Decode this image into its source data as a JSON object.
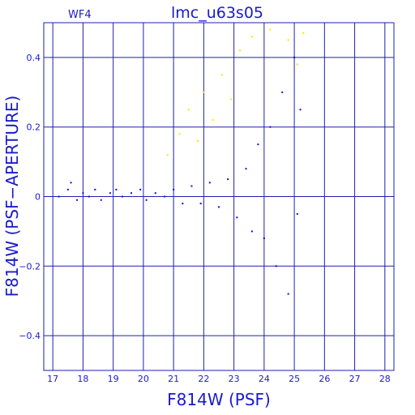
{
  "chart_data": {
    "type": "scatter",
    "title": "lmc_u63s05",
    "panel_label": "WF4",
    "xlabel": "F814W (PSF)",
    "ylabel": "F814W (PSF−APERTURE)",
    "xlim": [
      16.7,
      28.3
    ],
    "ylim": [
      -0.5,
      0.5
    ],
    "x_ticks": [
      17,
      18,
      19,
      20,
      21,
      22,
      23,
      24,
      25,
      26,
      27,
      28
    ],
    "x_tick_labels": [
      "17",
      "18",
      "19",
      "20",
      "21",
      "22",
      "23",
      "24",
      "25",
      "26",
      "27",
      "28"
    ],
    "y_ticks": [
      -0.4,
      -0.2,
      0,
      0.2,
      0.4
    ],
    "y_tick_labels": [
      "−0.4",
      "−0.2",
      "0",
      "0.2",
      "0.4"
    ],
    "grid": true,
    "colors": {
      "main": "#1010e0",
      "secondary": "#f2e600",
      "axes": "#1f1fb0"
    },
    "series": [
      {
        "color": "#1010e0",
        "points": [
          [
            17.2,
            0.0
          ],
          [
            17.5,
            0.02
          ],
          [
            17.6,
            0.04
          ],
          [
            17.8,
            -0.01
          ],
          [
            18.0,
            0.01
          ],
          [
            18.2,
            0.0
          ],
          [
            18.4,
            0.02
          ],
          [
            18.6,
            -0.01
          ],
          [
            18.9,
            0.01
          ],
          [
            19.1,
            0.02
          ],
          [
            19.3,
            0.0
          ],
          [
            19.6,
            0.01
          ],
          [
            19.9,
            0.02
          ],
          [
            20.1,
            -0.01
          ],
          [
            20.4,
            0.01
          ],
          [
            20.7,
            0.0
          ],
          [
            21.0,
            0.02
          ],
          [
            21.3,
            -0.02
          ],
          [
            21.6,
            0.03
          ],
          [
            21.9,
            -0.02
          ],
          [
            22.2,
            0.04
          ],
          [
            22.5,
            -0.03
          ],
          [
            22.8,
            0.05
          ],
          [
            23.1,
            -0.06
          ],
          [
            23.4,
            0.08
          ],
          [
            23.6,
            -0.1
          ],
          [
            23.8,
            0.15
          ],
          [
            24.0,
            -0.12
          ],
          [
            24.2,
            0.2
          ],
          [
            24.4,
            -0.2
          ],
          [
            24.6,
            0.3
          ],
          [
            24.8,
            -0.28
          ],
          [
            25.0,
            0.4
          ],
          [
            25.1,
            -0.05
          ],
          [
            25.2,
            0.25
          ]
        ]
      },
      {
        "color": "#f2e600",
        "points": [
          [
            20.8,
            0.12
          ],
          [
            21.2,
            0.18
          ],
          [
            21.5,
            0.25
          ],
          [
            21.8,
            0.16
          ],
          [
            22.0,
            0.3
          ],
          [
            22.3,
            0.22
          ],
          [
            22.6,
            0.35
          ],
          [
            22.9,
            0.28
          ],
          [
            23.2,
            0.42
          ],
          [
            23.6,
            0.46
          ],
          [
            24.2,
            0.48
          ],
          [
            24.8,
            0.45
          ],
          [
            25.1,
            0.38
          ],
          [
            25.3,
            0.47
          ]
        ]
      }
    ]
  }
}
